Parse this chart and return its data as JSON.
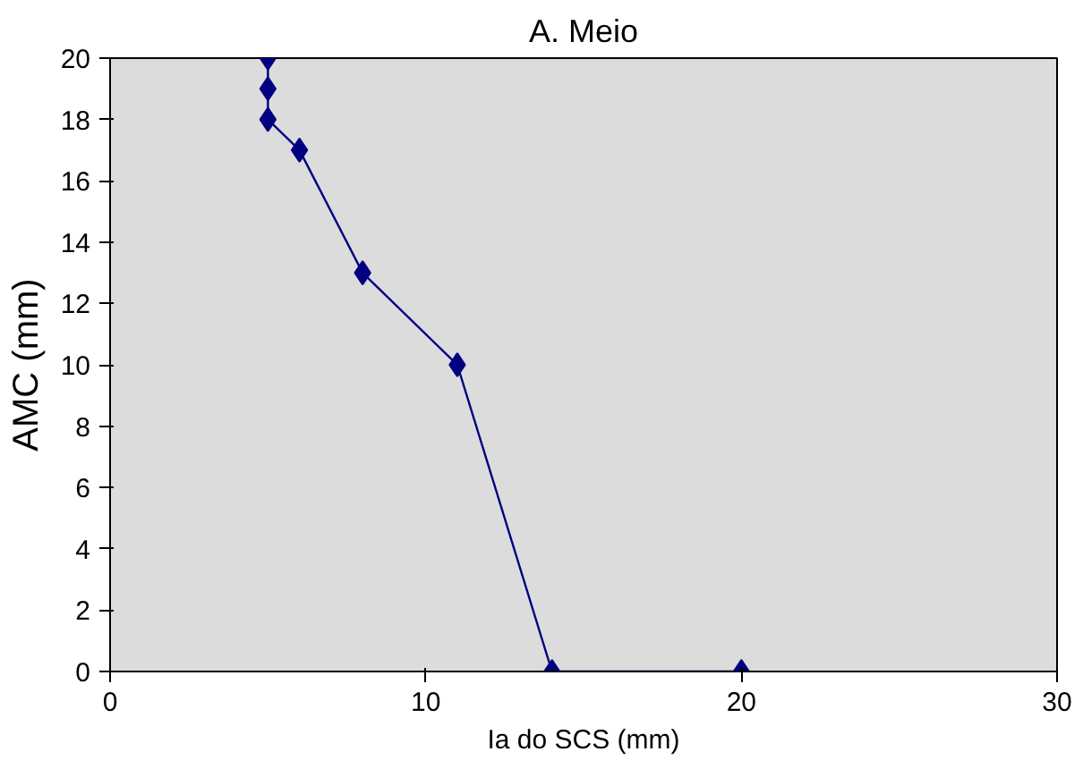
{
  "chart_data": {
    "type": "line",
    "title": "A. Meio",
    "xlabel": "Ia do SCS (mm)",
    "ylabel": "AMC (mm)",
    "x": [
      5,
      5,
      5,
      6,
      8,
      11,
      14,
      20
    ],
    "series": [
      {
        "color": "#000080",
        "values": [
          20,
          19,
          18,
          17,
          13,
          10,
          0,
          0
        ]
      }
    ],
    "xlim": [
      0,
      30
    ],
    "xticks": [
      0,
      10,
      20,
      30
    ],
    "ylim": [
      0,
      20
    ],
    "yticks": [
      0,
      2,
      4,
      6,
      8,
      10,
      12,
      14,
      16,
      18,
      20
    ],
    "grid": false,
    "marker": "diamond",
    "line_style": "solid"
  }
}
